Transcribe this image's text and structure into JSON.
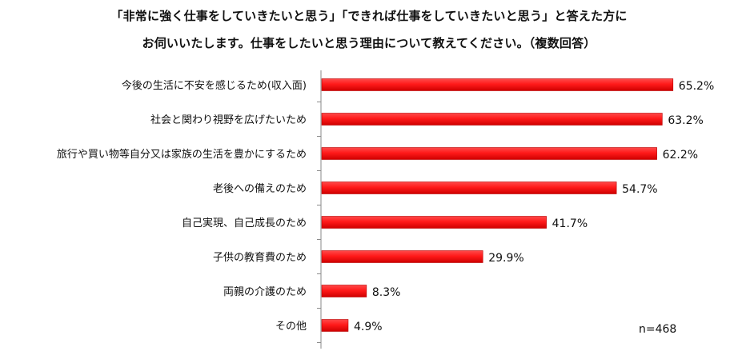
{
  "title": {
    "line1": "「非常に強く仕事をしていきたいと思う」「できれば仕事をしていきたいと思う」と答えた方に",
    "line2": "お伺いいたします。仕事をしたいと思う理由について教えてください。（複数回答）"
  },
  "sample_size_label": "n=468",
  "colors": {
    "bar": "#ff1a1a",
    "bar_edge": "#b80000",
    "axis": "#8a8a8a",
    "text": "#111111"
  },
  "chart_data": {
    "type": "bar",
    "orientation": "horizontal",
    "categories": [
      "今後の生活に不安を感じるため(収入面)",
      "社会と関わり視野を広げたいため",
      "旅行や買い物等自分又は家族の生活を豊かにするため",
      "老後への備えのため",
      "自己実現、自己成長のため",
      "子供の教育費のため",
      "両親の介護のため",
      "その他"
    ],
    "values": [
      65.2,
      63.2,
      62.2,
      54.7,
      41.7,
      29.9,
      8.3,
      4.9
    ],
    "value_labels": [
      "65.2%",
      "63.2%",
      "62.2%",
      "54.7%",
      "41.7%",
      "29.9%",
      "8.3%",
      "4.9%"
    ],
    "unit": "%",
    "xlim": [
      0,
      100
    ],
    "grid": false
  }
}
